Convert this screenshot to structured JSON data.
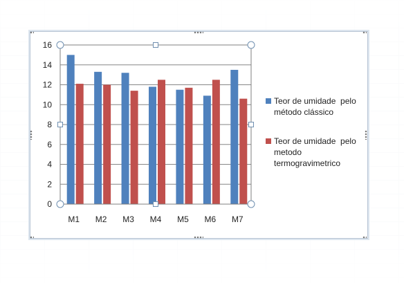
{
  "chart_data": {
    "type": "bar",
    "categories": [
      "M1",
      "M2",
      "M3",
      "M4",
      "M5",
      "M6",
      "M7"
    ],
    "series": [
      {
        "name": "Teor de umidade pelo método clássico",
        "legend_lines": [
          "Teor de umidade  pelo",
          "método clássico"
        ],
        "color": "#4f81bd",
        "values": [
          15.0,
          13.3,
          13.2,
          11.8,
          11.5,
          10.9,
          13.5
        ]
      },
      {
        "name": "Teor de umidade pelo metodo termogravimetrico",
        "legend_lines": [
          "Teor de umidade  pelo",
          "metodo",
          "termogravimetrico"
        ],
        "color": "#c0504d",
        "values": [
          12.1,
          12.0,
          11.4,
          12.5,
          11.7,
          12.5,
          10.6
        ]
      }
    ],
    "yticks": [
      "0",
      "2",
      "4",
      "6",
      "8",
      "10",
      "12",
      "14",
      "16"
    ],
    "ylim": [
      0,
      16
    ],
    "grid": true,
    "legend": "right",
    "title": "",
    "xlabel": "",
    "ylabel": ""
  }
}
